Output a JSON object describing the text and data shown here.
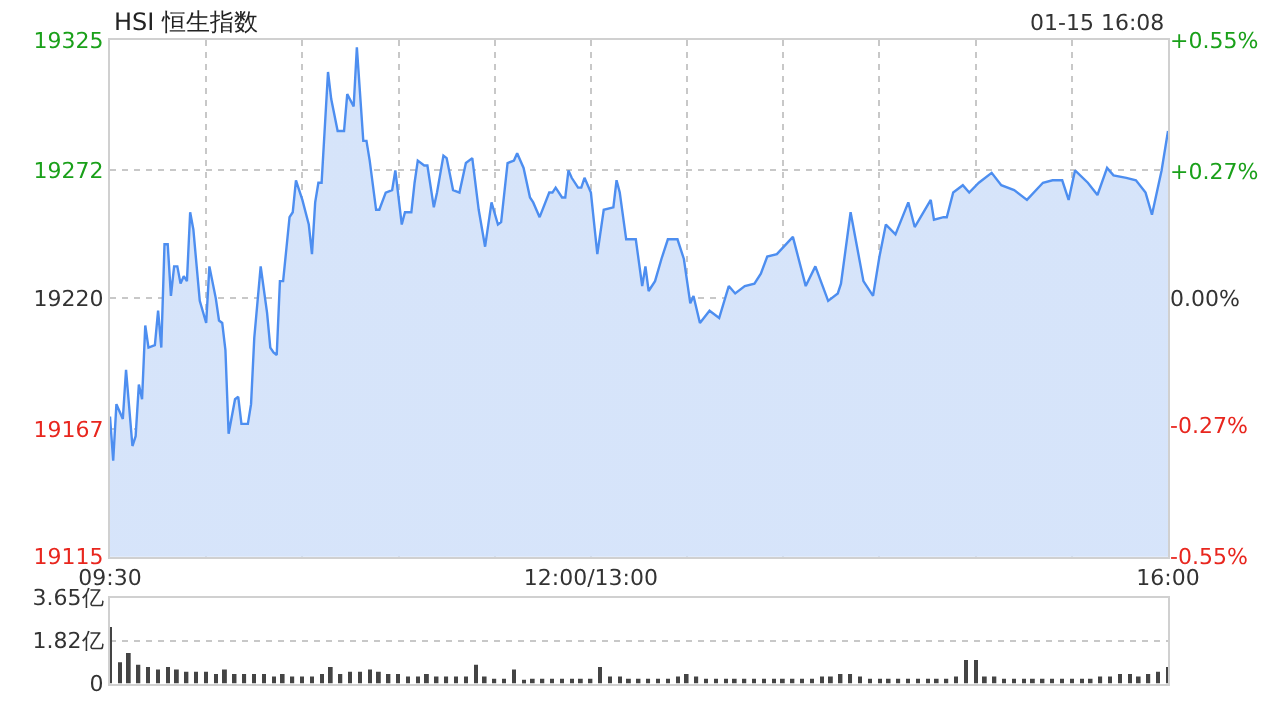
{
  "chart_data": [
    {
      "type": "area",
      "title": "HSI 恒生指数",
      "annotations": [
        "01-15 16:08"
      ],
      "categories": [
        "09:30",
        null,
        null,
        null,
        null,
        null,
        null,
        null,
        null,
        null,
        null,
        null,
        null,
        null,
        null,
        null,
        null,
        null,
        null,
        null,
        null,
        null,
        null,
        null,
        null,
        null,
        null,
        null,
        null,
        null,
        null,
        null,
        null,
        null,
        null,
        null,
        null,
        null,
        null,
        null,
        null,
        null,
        null,
        null,
        null,
        null,
        null,
        null,
        null,
        null,
        null,
        null,
        null,
        null,
        null,
        null,
        null,
        null,
        null,
        null,
        null,
        null,
        null,
        null,
        null,
        null,
        null,
        null,
        null,
        null,
        null,
        null,
        null,
        null,
        null,
        null,
        null,
        null,
        null,
        null,
        null,
        null,
        null,
        null,
        null,
        null,
        null,
        null,
        null,
        null,
        null,
        null,
        null,
        null,
        null,
        null,
        null,
        null,
        null,
        null,
        null,
        null,
        null,
        null,
        null,
        null,
        null,
        null,
        null,
        null,
        null,
        null,
        null,
        null,
        null,
        null,
        null,
        null,
        null,
        null,
        null,
        null,
        null,
        null,
        null,
        null,
        null,
        null,
        null,
        null,
        null,
        null,
        null,
        null,
        null,
        null,
        null,
        null,
        null,
        null,
        null,
        null,
        null,
        null,
        null,
        null,
        null,
        null,
        null,
        null,
        "12:00/13:00",
        null,
        null,
        null,
        null,
        null,
        null,
        null,
        null,
        null,
        null,
        null,
        null,
        null,
        null,
        null,
        null,
        null,
        null,
        null,
        null,
        null,
        null,
        null,
        null,
        null,
        null,
        null,
        null,
        null,
        null,
        null,
        null,
        null,
        null,
        null,
        null,
        null,
        null,
        null,
        null,
        null,
        null,
        null,
        null,
        null,
        null,
        null,
        null,
        null,
        null,
        null,
        null,
        null,
        null,
        null,
        null,
        null,
        null,
        null,
        null,
        null,
        null,
        null,
        null,
        null,
        null,
        null,
        null,
        null,
        null,
        null,
        null,
        null,
        null,
        null,
        null,
        null,
        null,
        null,
        null,
        null,
        null,
        null,
        null,
        null,
        null,
        null,
        null,
        null,
        null,
        null,
        null,
        null,
        null,
        null,
        null,
        null,
        null,
        null,
        null,
        null,
        null,
        null,
        null,
        null,
        null,
        null,
        null,
        null,
        null,
        null,
        null,
        null,
        null,
        null,
        null,
        null,
        null,
        null,
        null,
        null,
        null,
        null,
        null,
        null,
        null,
        null,
        null,
        null,
        null,
        null,
        null,
        null,
        null,
        null,
        null,
        null,
        null,
        null,
        null,
        null,
        null,
        null,
        null,
        null,
        null,
        null,
        null,
        null,
        null,
        null,
        null,
        null,
        null,
        null,
        null,
        null,
        null,
        null,
        null,
        null,
        null,
        null,
        null,
        null,
        null,
        null,
        null,
        null,
        null,
        null,
        null,
        null,
        null,
        null,
        null,
        null,
        null,
        null,
        "16:00"
      ],
      "series": [
        {
          "color": "#4d8ef0",
          "values": [
            19172,
            19154,
            19177,
            null,
            19171,
            19191,
            null,
            19160,
            19164,
            19185,
            19179,
            19209,
            19200,
            null,
            19201,
            19215,
            19200,
            19242,
            19242,
            19221,
            19233,
            19233,
            19226,
            19229,
            19227,
            19255,
            19248,
            null,
            19219,
            null,
            19210,
            19233,
            null,
            19220,
            19211,
            19210,
            19199,
            19165,
            null,
            19179,
            19180,
            19169,
            null,
            19169,
            19177,
            19204,
            null,
            19233,
            null,
            19214,
            19200,
            19198,
            19197,
            19227,
            19227,
            null,
            19253,
            19255,
            19268,
            null,
            19260,
            null,
            19250,
            19238,
            19259,
            19267,
            19267,
            null,
            19312,
            19301,
            null,
            19288,
            null,
            19288,
            19303,
            null,
            19298,
            19322,
            19303,
            19284,
            19284,
            19276,
            null,
            19256,
            19256,
            null,
            19263,
            null,
            19264,
            19272,
            null,
            19250,
            19255,
            null,
            19255,
            19267,
            19276,
            null,
            19274,
            19274,
            null,
            19257,
            19263,
            null,
            19278,
            19277,
            null,
            19264,
            null,
            19263,
            null,
            19275,
            null,
            19277,
            null,
            19256,
            null,
            19241,
            null,
            19259,
            null,
            19250,
            19251,
            null,
            19275,
            null,
            19276,
            19279,
            null,
            19273,
            null,
            19261,
            19259,
            null,
            19253,
            null,
            null,
            19263,
            19263,
            19265,
            null,
            19261,
            19261,
            19272,
            19269,
            null,
            19265,
            19265,
            19269,
            null,
            19263,
            null,
            19238,
            null,
            19256,
            null,
            null,
            19257,
            19268,
            19263,
            null,
            19244,
            null,
            null,
            19244,
            null,
            19225,
            19233,
            19223,
            null,
            19227,
            null,
            19236,
            null,
            19244,
            null,
            null,
            19244,
            null,
            19236,
            null,
            19218,
            19221,
            null,
            19210,
            null,
            null,
            19215,
            null,
            null,
            19212,
            null,
            null,
            19225,
            null,
            19222,
            null,
            null,
            19225,
            null,
            null,
            19226,
            null,
            19230,
            null,
            19237,
            null,
            null,
            19238,
            null,
            null,
            null,
            null,
            19245,
            19240,
            null,
            null,
            19225,
            null,
            null,
            19233,
            null,
            19226,
            null,
            19219,
            null,
            null,
            19222,
            19226,
            null,
            null,
            19255,
            null,
            19241,
            null,
            19227,
            null,
            null,
            19221,
            null,
            19237,
            null,
            19250,
            null,
            null,
            19246,
            null,
            null,
            null,
            19259,
            null,
            19249,
            null,
            null,
            null,
            null,
            19260,
            19252,
            null,
            null,
            19253,
            19253,
            null,
            19263,
            null,
            null,
            19266,
            null,
            19263,
            null,
            null,
            19267,
            null,
            null,
            null,
            19271,
            null,
            null,
            19266,
            null,
            null,
            null,
            19264,
            null,
            null,
            null,
            19260,
            null,
            null,
            null,
            null,
            19267,
            null,
            null,
            19268,
            null,
            null,
            19268,
            null,
            19260,
            null,
            19272,
            null,
            null,
            null,
            19267,
            null,
            null,
            19262,
            null,
            null,
            19273,
            null,
            19270,
            null,
            null,
            null,
            19269,
            null,
            null,
            19268,
            null,
            null,
            19263,
            null,
            19254,
            null,
            null,
            19272,
            null,
            19288
          ]
        }
      ],
      "ylim": [
        19115,
        19325
      ],
      "yticks": [
        19115,
        19167,
        19220,
        19272,
        19325
      ],
      "y2lim": [
        -0.55,
        0.55
      ],
      "y2ticks": [
        {
          "value": -0.55,
          "label": "-0.55%"
        },
        {
          "value": -0.27,
          "label": "-0.27%"
        },
        {
          "value": 0,
          "label": "0.00%"
        },
        {
          "value": 0.27,
          "label": "+0.27%"
        },
        {
          "value": 0.55,
          "label": "+0.55%"
        }
      ],
      "grid": true,
      "line_style": "solid",
      "marker": "none"
    },
    {
      "type": "bar",
      "categories": [
        null,
        null,
        null,
        null,
        null,
        null,
        null,
        null,
        null,
        null,
        null,
        null,
        null,
        null,
        null,
        null,
        null,
        null,
        null,
        null,
        null,
        null,
        null,
        null,
        null,
        null,
        null,
        null,
        null,
        null,
        null,
        null,
        null,
        null,
        null,
        null,
        null,
        null,
        null,
        null,
        null,
        null,
        null,
        null,
        null,
        null,
        null,
        null,
        null,
        null,
        null,
        null,
        null,
        null,
        null,
        null,
        null,
        null,
        null,
        null,
        null,
        null,
        null,
        null,
        null,
        null,
        null,
        null,
        null,
        null,
        null,
        null,
        null,
        null,
        null,
        null,
        null,
        null,
        null,
        null,
        null,
        null,
        null,
        null,
        null,
        null,
        null,
        null,
        null,
        null,
        null,
        null,
        null,
        null,
        null,
        null,
        null,
        null,
        null,
        null,
        null,
        null,
        null,
        null,
        null,
        null,
        null,
        null,
        null,
        null,
        null,
        null,
        null,
        null,
        null,
        null,
        null,
        null,
        null,
        null,
        null,
        null,
        null,
        null,
        null,
        null,
        null,
        null,
        null,
        null,
        null,
        null,
        null,
        null,
        null,
        null,
        null,
        null,
        null,
        null,
        null,
        null,
        null,
        null,
        null,
        null,
        null,
        null,
        null,
        null,
        null,
        null,
        null,
        null,
        null,
        null,
        null,
        null,
        null,
        null,
        null,
        null,
        null,
        null,
        null,
        null,
        null,
        null,
        null,
        null,
        null,
        null,
        null,
        null,
        null,
        null,
        null,
        null,
        null,
        null,
        null,
        null,
        null,
        null,
        null,
        null,
        null,
        null,
        null,
        null,
        null,
        null,
        null,
        null,
        null,
        null,
        null,
        null,
        null,
        null,
        null,
        null,
        null,
        null,
        null,
        null,
        null,
        null,
        null,
        null,
        null,
        null,
        null,
        null,
        null,
        null,
        null,
        null,
        null,
        null,
        null,
        null,
        null,
        null,
        null,
        null,
        null,
        null,
        null,
        null,
        null,
        null,
        null,
        null,
        null,
        null,
        null,
        null,
        null,
        null,
        null,
        null,
        null,
        null,
        null,
        null,
        null,
        null,
        null,
        null,
        null,
        null,
        null,
        null,
        null,
        null,
        null,
        null,
        null,
        null,
        null,
        null,
        null,
        null,
        null,
        null,
        null,
        null,
        null,
        null,
        null,
        null,
        null,
        null,
        null,
        null,
        null,
        null,
        null,
        null,
        null,
        null,
        null,
        null,
        null,
        null,
        null,
        null,
        null,
        null,
        null,
        null,
        null,
        null,
        null,
        null,
        null,
        null,
        null,
        null,
        null,
        null,
        null,
        null,
        null,
        null,
        null,
        null,
        null,
        null,
        null,
        null,
        null,
        null,
        null,
        null,
        null,
        null,
        null,
        null,
        null,
        null,
        null,
        null,
        null,
        null,
        null,
        null,
        null,
        null,
        null
      ],
      "series": [
        {
          "color": "#444444",
          "values": [
            2.4,
            null,
            null,
            0.9,
            null,
            null,
            1.3,
            null,
            null,
            0.8,
            null,
            null,
            0.7,
            null,
            null,
            0.6,
            null,
            null,
            0.7,
            null,
            null,
            0.6,
            null,
            null,
            0.5,
            null,
            null,
            0.5,
            null,
            null,
            0.5,
            null,
            null,
            0.4,
            null,
            null,
            0.6,
            null,
            null,
            0.4,
            null,
            null,
            0.4,
            null,
            null,
            0.4,
            null,
            null,
            0.4,
            null,
            null,
            0.3,
            null,
            null,
            0.4,
            null,
            null,
            0.3,
            null,
            null,
            0.3,
            null,
            null,
            0.3,
            null,
            null,
            0.4,
            null,
            null,
            0.7,
            null,
            null,
            0.4,
            null,
            null,
            0.5,
            null,
            null,
            0.5,
            null,
            null,
            0.6,
            null,
            null,
            0.5,
            null,
            null,
            0.4,
            null,
            null,
            0.4,
            null,
            null,
            0.3,
            null,
            null,
            0.3,
            null,
            null,
            0.4,
            null,
            null,
            0.3,
            null,
            null,
            0.3,
            null,
            null,
            0.3,
            null,
            null,
            0.3,
            null,
            null,
            0.8,
            null,
            null,
            0.3,
            null,
            null,
            0.2,
            null,
            null,
            0.2,
            null,
            null,
            0.6,
            null,
            null,
            0.1,
            null,
            null,
            0.2,
            null,
            null,
            0.2,
            null,
            null,
            0.2,
            null,
            null,
            0.2,
            null,
            null,
            0.2,
            null,
            null,
            0.2,
            null,
            null,
            0.2,
            null,
            null,
            0.7,
            null,
            null,
            0.3,
            null,
            null,
            0.3,
            null,
            null,
            0.2,
            null,
            null,
            0.2,
            null,
            null,
            0.2,
            null,
            null,
            0.2,
            null,
            null,
            0.2,
            null,
            null,
            0.3,
            null,
            null,
            0.4,
            null,
            null,
            0.3,
            null,
            null,
            0.2,
            null,
            null,
            0.2,
            null,
            null,
            0.2,
            null,
            null,
            0.2,
            null,
            null,
            0.2,
            null,
            null,
            0.2,
            null,
            null,
            0.2,
            null,
            null,
            0.2,
            null,
            null,
            0.2,
            null,
            null,
            0.2,
            null,
            null,
            0.2,
            null,
            null,
            0.2,
            null,
            null,
            0.3,
            null,
            null,
            0.3,
            null,
            null,
            0.4,
            null,
            null,
            0.4,
            null,
            null,
            0.3,
            null,
            null,
            0.2,
            null,
            null,
            0.2,
            null,
            null,
            0.2,
            null,
            null,
            0.2,
            null,
            null,
            0.2,
            null,
            null,
            0.2,
            null,
            null,
            0.2,
            null,
            null,
            0.2,
            null,
            null,
            0.2,
            null,
            null,
            0.3,
            null,
            null,
            1.0,
            null,
            null,
            1.0,
            null,
            null,
            0.3,
            null,
            null,
            0.3,
            null,
            null,
            0.2,
            null,
            null,
            0.2,
            null,
            null,
            0.2,
            null,
            null,
            0.2,
            null,
            null,
            0.2,
            null,
            null,
            0.2,
            null,
            null,
            0.2,
            null,
            null,
            0.2,
            null,
            null,
            0.2,
            null,
            null,
            0.2,
            null,
            null,
            0.3,
            null,
            null,
            0.3,
            null,
            null,
            0.4,
            null,
            null,
            0.4,
            null,
            null,
            0.3,
            null,
            null,
            0.4,
            null,
            null,
            0.5,
            null,
            null,
            0.7
          ]
        }
      ],
      "ylim": [
        0,
        3.65
      ],
      "yticks": [
        0,
        {
          "value": 1.82,
          "label": "1.82亿"
        },
        {
          "value": 3.65,
          "label": "3.65亿"
        }
      ],
      "tick_labels": "y",
      "grid": "y"
    }
  ]
}
